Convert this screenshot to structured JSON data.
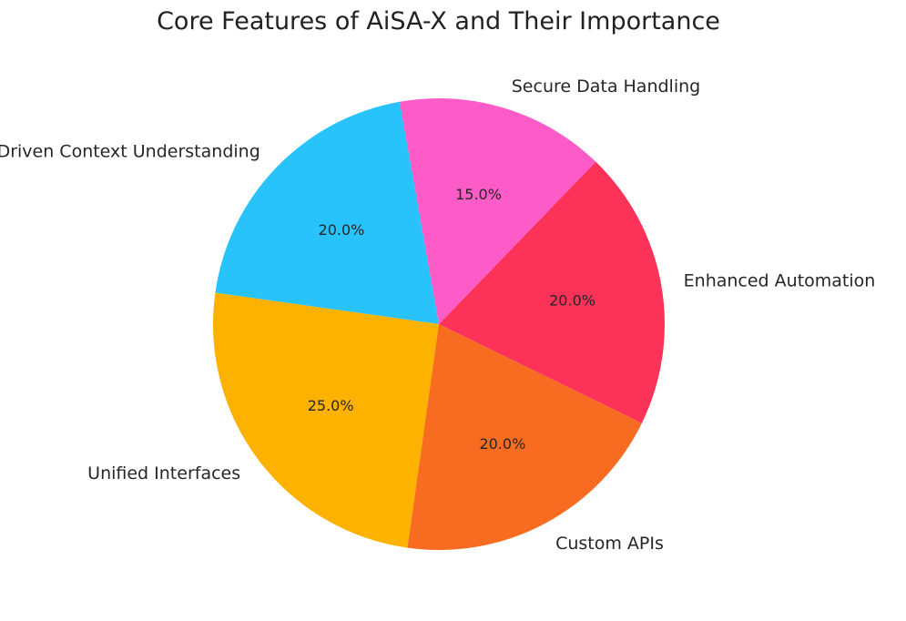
{
  "chart_data": {
    "type": "pie",
    "title": "Core Features of AiSA-X and Their Importance",
    "categories": [
      "AI-Driven Context Understanding",
      "Unified Interfaces",
      "Custom APIs",
      "Enhanced Automation",
      "Secure Data Handling"
    ],
    "values": [
      20,
      25,
      20,
      20,
      15
    ],
    "value_labels": [
      "20.0%",
      "25.0%",
      "20.0%",
      "20.0%",
      "15.0%"
    ],
    "colors": [
      "#29c3fc",
      "#fdb200",
      "#f76c21",
      "#fc3259",
      "#fd5bc7"
    ],
    "start_angle_deg": 100,
    "direction": "counterclockwise",
    "legend": "none"
  }
}
